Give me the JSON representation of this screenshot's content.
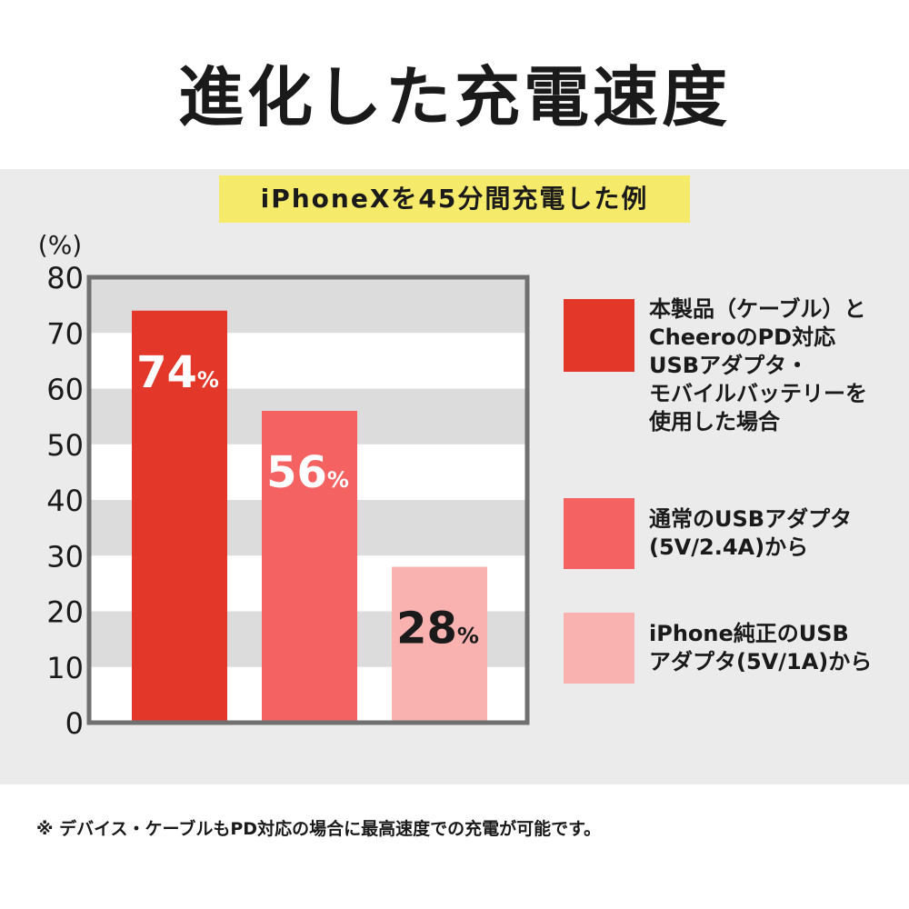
{
  "title": "進化した充電速度",
  "subtitle": "iPhoneXを45分間充電した例",
  "footnote": "※ デバイス・ケーブルもPD対応の場合に最高速度での充電が可能です。",
  "colors": {
    "background": "#ffffff",
    "panel": "#ebebeb",
    "subtitle_bg": "#f6ea6a",
    "band": "#dcdcdc",
    "frame": "#707070"
  },
  "chart_data": {
    "type": "bar",
    "unit_label": "(%)",
    "ylim": [
      0,
      80
    ],
    "yticks": [
      "0",
      "10",
      "20",
      "30",
      "40",
      "50",
      "60",
      "70",
      "80"
    ],
    "grid": "alternating horizontal bands",
    "legend_position": "right",
    "series": [
      {
        "name": "本製品（ケーブル）とCheeroのPD対応USBアダプタ・モバイルバッテリーを使用した場合",
        "value": 74,
        "label": "74",
        "label_unit": "%",
        "color": "#e3372a",
        "label_color": "#ffffff"
      },
      {
        "name": "通常のUSBアダプタ(5V/2.4A)から",
        "value": 56,
        "label": "56",
        "label_unit": "%",
        "color": "#f56262",
        "label_color": "#ffffff"
      },
      {
        "name": "iPhone純正のUSBアダプタ(5V/1A)から",
        "value": 28,
        "label": "28",
        "label_unit": "%",
        "color": "#f9b2b0",
        "label_color": "#1a1a1a"
      }
    ]
  },
  "legend": [
    {
      "text": "本製品（ケーブル）と\nCheeroのPD対応\nUSBアダプタ・\nモバイルバッテリーを\n使用した場合",
      "color": "#e3372a"
    },
    {
      "text": "通常のUSBアダプタ\n(5V/2.4A)から",
      "color": "#f56262"
    },
    {
      "text": "iPhone純正のUSB\nアダプタ(5V/1A)から",
      "color": "#f9b2b0"
    }
  ]
}
